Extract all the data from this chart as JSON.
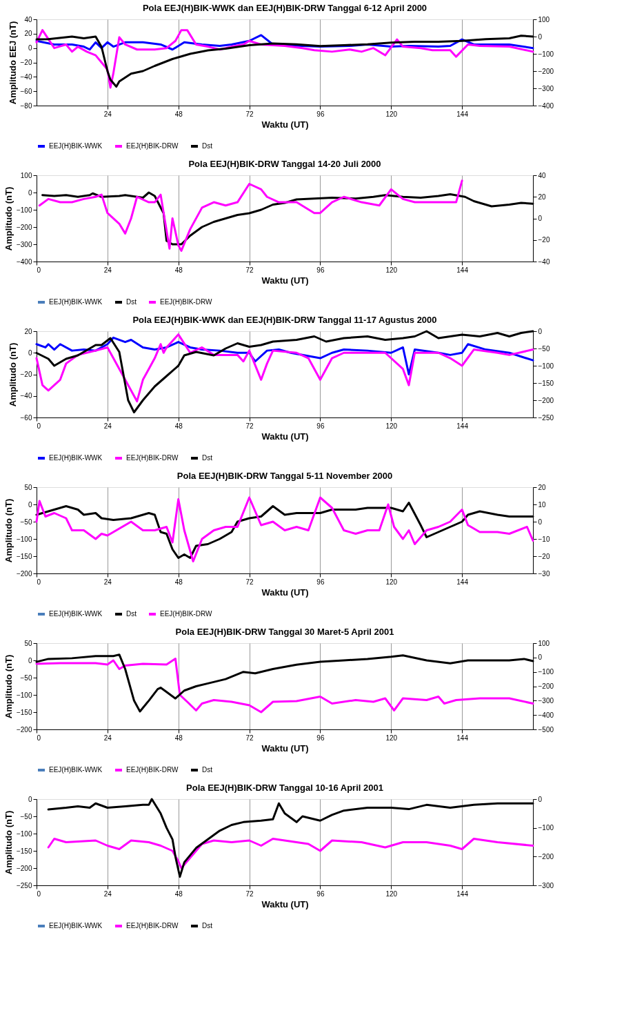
{
  "chart_data": [
    {
      "type": "line",
      "title": "Pola EEJ(H)BIK-WWK dan EEJ(H)BIK-DRW Tanggal 6-12 April 2000",
      "xlabel": "Waktu (UT)",
      "ylabel": "Amplitudo EEJ (nT)",
      "xlim": [
        0,
        168
      ],
      "xticks": [
        24,
        48,
        72,
        96,
        120,
        144
      ],
      "ylim": [
        -80,
        40
      ],
      "yticks": [
        -80,
        -60,
        -40,
        -20,
        0,
        20,
        40
      ],
      "y2lim": [
        -400,
        100
      ],
      "y2ticks": [
        -400,
        -300,
        -200,
        -100,
        0,
        100
      ],
      "grid": "x",
      "legend": "bottom",
      "series": [
        {
          "name": "EEJ(H)BIK-WWK",
          "color": "#0000ff",
          "x": [
            0,
            6,
            12,
            16,
            18,
            20,
            22,
            24,
            26,
            30,
            36,
            42,
            46,
            50,
            56,
            62,
            66,
            72,
            76,
            80,
            90,
            96,
            106,
            112,
            120,
            126,
            136,
            140,
            144,
            148,
            160,
            168
          ],
          "values": [
            10,
            5,
            5,
            2,
            -2,
            8,
            0,
            8,
            2,
            8,
            8,
            5,
            -2,
            8,
            5,
            3,
            5,
            10,
            18,
            5,
            3,
            2,
            3,
            5,
            2,
            3,
            2,
            3,
            12,
            5,
            5,
            0
          ]
        },
        {
          "name": "EEJ(H)BIK-DRW",
          "color": "#ff00ff",
          "x": [
            0,
            2,
            6,
            10,
            12,
            14,
            17,
            20,
            22,
            24,
            25,
            26,
            28,
            30,
            34,
            40,
            44,
            47,
            49,
            51,
            54,
            58,
            62,
            66,
            70,
            72,
            76,
            84,
            90,
            94,
            100,
            106,
            110,
            114,
            118,
            122,
            124,
            130,
            134,
            140,
            142,
            146,
            150,
            160,
            168
          ],
          "values": [
            8,
            25,
            0,
            5,
            -5,
            2,
            -5,
            -10,
            -20,
            -30,
            -55,
            -35,
            15,
            5,
            -2,
            -2,
            0,
            10,
            25,
            25,
            5,
            2,
            -2,
            2,
            5,
            10,
            5,
            3,
            0,
            -3,
            -5,
            -2,
            -5,
            0,
            -10,
            12,
            2,
            0,
            -3,
            -3,
            -12,
            5,
            3,
            2,
            -5
          ]
        },
        {
          "name": "Dst",
          "color": "#000000",
          "axis": "y2",
          "x": [
            0,
            4,
            12,
            16,
            20,
            22,
            24,
            25,
            27,
            28,
            32,
            36,
            40,
            46,
            52,
            58,
            64,
            72,
            80,
            88,
            96,
            104,
            112,
            120,
            128,
            136,
            144,
            152,
            160,
            164,
            168
          ],
          "values": [
            -16,
            -15,
            0,
            -10,
            0,
            -60,
            -200,
            -250,
            -290,
            -260,
            -215,
            -200,
            -170,
            -130,
            -100,
            -80,
            -70,
            -50,
            -40,
            -45,
            -55,
            -50,
            -45,
            -35,
            -30,
            -30,
            -25,
            -15,
            -10,
            5,
            0
          ]
        }
      ]
    },
    {
      "type": "line",
      "title": "Pola  EEJ(H)BIK-DRW Tanggal 14-20 Juli 2000",
      "xlabel": "Waktu (UT)",
      "ylabel": "Amplitudo (nT)",
      "xlim": [
        0,
        168
      ],
      "xticks": [
        0,
        24,
        48,
        72,
        96,
        120,
        144
      ],
      "ylim": [
        -400,
        100
      ],
      "yticks": [
        -400,
        -300,
        -200,
        -100,
        0,
        100
      ],
      "y2lim": [
        -40,
        40
      ],
      "y2ticks": [
        -40,
        -20,
        0,
        20,
        40
      ],
      "grid": "x",
      "legend": "bottom",
      "series": [
        {
          "name": "EEJ(H)BIK-WWK",
          "color": "#4a7ebb"
        },
        {
          "name": "Dst",
          "color": "#000000",
          "x": [
            2,
            6,
            10,
            14,
            18,
            19,
            22,
            28,
            30,
            36,
            38,
            40,
            43,
            44,
            46,
            49,
            52,
            56,
            60,
            64,
            68,
            72,
            76,
            80,
            84,
            88,
            94,
            100,
            108,
            114,
            118,
            124,
            130,
            136,
            140,
            145,
            148,
            154,
            160,
            164,
            168
          ],
          "values": [
            -15,
            -20,
            -15,
            -25,
            -15,
            -5,
            -25,
            -20,
            -15,
            -30,
            0,
            -20,
            -120,
            -280,
            -300,
            -300,
            -250,
            -200,
            -170,
            -150,
            -130,
            -120,
            -100,
            -70,
            -60,
            -40,
            -35,
            -30,
            -35,
            -25,
            -15,
            -25,
            -30,
            -20,
            -10,
            -25,
            -50,
            -80,
            -70,
            -60,
            -65
          ]
        },
        {
          "name": "EEJ(H)BIK-DRW",
          "color": "#ff00ff",
          "axis": "y2",
          "x": [
            1,
            4,
            8,
            12,
            16,
            20,
            22,
            24,
            28,
            30,
            32,
            34,
            38,
            40,
            42,
            45,
            46,
            48,
            49,
            52,
            56,
            60,
            64,
            68,
            72,
            76,
            78,
            82,
            88,
            94,
            96,
            100,
            104,
            110,
            116,
            120,
            124,
            128,
            136,
            142,
            144
          ],
          "values": [
            12,
            18,
            15,
            15,
            18,
            20,
            22,
            5,
            -5,
            -14,
            0,
            20,
            15,
            15,
            22,
            -28,
            0,
            -25,
            -30,
            -10,
            10,
            15,
            12,
            15,
            32,
            27,
            20,
            15,
            15,
            5,
            5,
            15,
            20,
            15,
            12,
            27,
            18,
            15,
            15,
            15,
            35
          ]
        }
      ]
    },
    {
      "type": "line",
      "title": "Pola EEJ(H)BIK-WWK dan EEJ(H)BIK-DRW Tanggal 11-17 Agustus 2000",
      "xlabel": "Waktu (UT)",
      "ylabel": "Amplitudo (nT)",
      "xlim": [
        0,
        168
      ],
      "xticks": [
        0,
        24,
        48,
        72,
        96,
        120,
        144
      ],
      "ylim": [
        -60,
        20
      ],
      "yticks": [
        -60,
        -40,
        -20,
        0,
        20
      ],
      "y2lim": [
        -250,
        0
      ],
      "y2ticks": [
        -250,
        -200,
        -150,
        -100,
        -50,
        0
      ],
      "grid": "x",
      "legend": "bottom",
      "series": [
        {
          "name": "EEJ(H)BIK-WWK",
          "color": "#0000ff",
          "x": [
            0,
            3,
            4,
            6,
            8,
            12,
            16,
            20,
            24,
            26,
            30,
            32,
            36,
            40,
            44,
            48,
            52,
            56,
            62,
            68,
            72,
            74,
            78,
            82,
            86,
            96,
            100,
            104,
            112,
            120,
            124,
            126,
            128,
            136,
            140,
            144,
            146,
            152,
            160,
            168
          ],
          "values": [
            8,
            5,
            8,
            3,
            8,
            2,
            3,
            2,
            8,
            14,
            10,
            12,
            5,
            3,
            5,
            10,
            5,
            3,
            2,
            0,
            0,
            -8,
            2,
            3,
            0,
            -5,
            0,
            3,
            2,
            0,
            5,
            -20,
            3,
            0,
            -2,
            0,
            8,
            3,
            0,
            -7
          ]
        },
        {
          "name": "EEJ(H)BIK-DRW",
          "color": "#ff00ff",
          "x": [
            0,
            2,
            4,
            8,
            10,
            14,
            20,
            24,
            26,
            30,
            34,
            36,
            38,
            40,
            42,
            43,
            44,
            48,
            52,
            56,
            60,
            68,
            70,
            72,
            76,
            78,
            80,
            88,
            92,
            96,
            100,
            104,
            112,
            118,
            124,
            126,
            128,
            136,
            140,
            144,
            148,
            156,
            160,
            168
          ],
          "values": [
            -5,
            -30,
            -35,
            -25,
            -10,
            -2,
            2,
            5,
            -5,
            -25,
            -45,
            -25,
            -15,
            -5,
            8,
            0,
            5,
            17,
            0,
            5,
            -2,
            -2,
            -8,
            2,
            -25,
            -10,
            2,
            0,
            -5,
            -25,
            -5,
            0,
            0,
            0,
            -15,
            -30,
            0,
            0,
            -5,
            -12,
            3,
            0,
            -2,
            3
          ]
        },
        {
          "name": "Dst",
          "color": "#000000",
          "axis": "y2",
          "x": [
            0,
            4,
            6,
            10,
            14,
            18,
            20,
            22,
            25,
            28,
            31,
            33,
            36,
            40,
            44,
            48,
            50,
            54,
            60,
            64,
            68,
            72,
            76,
            80,
            88,
            94,
            98,
            104,
            112,
            118,
            124,
            128,
            132,
            136,
            144,
            150,
            156,
            160,
            164,
            168
          ],
          "values": [
            -63,
            -80,
            -100,
            -80,
            -70,
            -50,
            -40,
            -40,
            -20,
            -60,
            -200,
            -235,
            -200,
            -160,
            -130,
            -100,
            -70,
            -60,
            -70,
            -50,
            -35,
            -45,
            -40,
            -30,
            -25,
            -15,
            -30,
            -20,
            -15,
            -25,
            -20,
            -15,
            0,
            -20,
            -10,
            -15,
            -5,
            -15,
            -5,
            0
          ]
        }
      ]
    },
    {
      "type": "line",
      "title": "Pola EEJ(H)BIK-DRW Tanggal 5-11 November 2000",
      "xlabel": "Waktu (UT)",
      "ylabel": "Amplitudo (nT)",
      "xlim": [
        0,
        168
      ],
      "xticks": [
        0,
        24,
        48,
        72,
        96,
        120,
        144
      ],
      "ylim": [
        -200,
        50
      ],
      "yticks": [
        -200,
        -150,
        -100,
        -50,
        0,
        50
      ],
      "y2lim": [
        -30,
        20
      ],
      "y2ticks": [
        -30,
        -20,
        -10,
        0,
        10,
        20
      ],
      "grid": "x",
      "legend": "bottom",
      "series": [
        {
          "name": "EEJ(H)BIK-WWK",
          "color": "#4a7ebb"
        },
        {
          "name": "Dst",
          "color": "#000000",
          "x": [
            0,
            4,
            10,
            14,
            16,
            20,
            22,
            26,
            32,
            36,
            38,
            40,
            42,
            44,
            46,
            48,
            50,
            52,
            54,
            58,
            62,
            66,
            68,
            72,
            76,
            80,
            84,
            88,
            96,
            100,
            108,
            112,
            120,
            124,
            126,
            130,
            132,
            136,
            140,
            144,
            146,
            150,
            156,
            160,
            168
          ],
          "values": [
            -30,
            -20,
            -5,
            -15,
            -30,
            -25,
            -40,
            -45,
            -40,
            -30,
            -25,
            -30,
            -80,
            -85,
            -130,
            -155,
            -145,
            -155,
            -120,
            -115,
            -100,
            -80,
            -50,
            -40,
            -35,
            -5,
            -30,
            -25,
            -25,
            -15,
            -15,
            -10,
            -10,
            -20,
            5,
            -60,
            -95,
            -80,
            -65,
            -50,
            -30,
            -20,
            -30,
            -35,
            -35
          ]
        },
        {
          "name": "EEJ(H)BIK-DRW",
          "color": "#ff00ff",
          "axis": "y2",
          "x": [
            0,
            1,
            3,
            6,
            10,
            12,
            16,
            20,
            22,
            24,
            32,
            36,
            40,
            44,
            46,
            48,
            50,
            53,
            56,
            60,
            64,
            68,
            72,
            76,
            80,
            84,
            88,
            92,
            96,
            100,
            104,
            108,
            112,
            116,
            119,
            121,
            124,
            126,
            128,
            132,
            136,
            140,
            144,
            146,
            150,
            156,
            160,
            166,
            168
          ],
          "values": [
            0,
            12,
            3,
            5,
            2,
            -5,
            -5,
            -10,
            -7,
            -8,
            0,
            -5,
            -5,
            -3,
            -12,
            13,
            -5,
            -23,
            -10,
            -5,
            -3,
            -3,
            14,
            -2,
            0,
            -5,
            -3,
            -5,
            14,
            8,
            -5,
            -7,
            -5,
            -5,
            10,
            -3,
            -10,
            -5,
            -13,
            -5,
            -3,
            0,
            7,
            -2,
            -6,
            -6,
            -7,
            -3,
            -11
          ]
        }
      ]
    },
    {
      "type": "line",
      "title": "Pola EEJ(H)BIK-DRW Tanggal 30 Maret-5 April 2001",
      "xlabel": "Waktu (UT)",
      "ylabel": "Amplitudo (nT)",
      "xlim": [
        0,
        168
      ],
      "xticks": [
        0,
        24,
        48,
        72,
        96,
        120,
        144
      ],
      "ylim": [
        -200,
        50
      ],
      "yticks": [
        -200,
        -150,
        -100,
        -50,
        0,
        50
      ],
      "y2lim": [
        -500,
        100
      ],
      "y2ticks": [
        -500,
        -400,
        -300,
        -200,
        -100,
        0,
        100
      ],
      "grid": "x",
      "legend": "bottom",
      "series": [
        {
          "name": "EEJ(H)BIK-WWK",
          "color": "#4a7ebb"
        },
        {
          "name": "EEJ(H)BIK-DRW",
          "color": "#ff00ff",
          "x": [
            0,
            8,
            20,
            24,
            26,
            28,
            30,
            36,
            44,
            47,
            48.5,
            51,
            54,
            56,
            60,
            66,
            72,
            76,
            80,
            88,
            96,
            100,
            108,
            114,
            118,
            121,
            124,
            132,
            136,
            138,
            142,
            150,
            160,
            168
          ],
          "values": [
            -10,
            -8,
            -8,
            -12,
            0,
            -25,
            -15,
            -10,
            -12,
            5,
            -100,
            -120,
            -145,
            -125,
            -115,
            -120,
            -130,
            -150,
            -120,
            -118,
            -105,
            -125,
            -115,
            -120,
            -110,
            -145,
            -110,
            -115,
            -105,
            -125,
            -115,
            -110,
            -110,
            -125
          ]
        },
        {
          "name": "Dst",
          "color": "#000000",
          "axis": "y2",
          "x": [
            0,
            4,
            12,
            20,
            26,
            28,
            30,
            33,
            35,
            38,
            41,
            42,
            44,
            47,
            50,
            54,
            58,
            64,
            70,
            74,
            80,
            88,
            96,
            104,
            112,
            120,
            124,
            132,
            140,
            146,
            160,
            165,
            168
          ],
          "values": [
            -30,
            -10,
            -5,
            10,
            10,
            20,
            -80,
            -300,
            -375,
            -300,
            -220,
            -210,
            -240,
            -285,
            -230,
            -200,
            -180,
            -150,
            -100,
            -110,
            -80,
            -50,
            -30,
            -20,
            -10,
            5,
            15,
            -20,
            -40,
            -20,
            -20,
            -10,
            -25
          ]
        }
      ]
    },
    {
      "type": "line",
      "title": "Pola EEJ(H)BIK-DRW Tanggal 10-16 April 2001",
      "xlabel": "Waktu (UT)",
      "ylabel": "Amplitudo (nT)",
      "xlim": [
        0,
        168
      ],
      "xticks": [
        0,
        24,
        48,
        72,
        96,
        120,
        144
      ],
      "ylim": [
        -250,
        0
      ],
      "yticks": [
        -250,
        -200,
        -150,
        -100,
        -50,
        0
      ],
      "y2lim": [
        -300,
        0
      ],
      "y2ticks": [
        -300,
        -200,
        -100,
        0
      ],
      "grid": "x",
      "legend": "bottom",
      "series": [
        {
          "name": "EEJ(H)BIK-WWK",
          "color": "#4a7ebb"
        },
        {
          "name": "EEJ(H)BIK-DRW",
          "color": "#ff00ff",
          "x": [
            4,
            6,
            10,
            20,
            24,
            28,
            32,
            38,
            42,
            46,
            48,
            49,
            52,
            56,
            60,
            66,
            72,
            76,
            80,
            88,
            92,
            96,
            100,
            110,
            118,
            124,
            132,
            140,
            144,
            148,
            156,
            168
          ],
          "values": [
            -140,
            -115,
            -125,
            -120,
            -135,
            -145,
            -120,
            -125,
            -135,
            -150,
            -180,
            -200,
            -170,
            -130,
            -120,
            -125,
            -120,
            -135,
            -115,
            -125,
            -130,
            -150,
            -120,
            -125,
            -140,
            -125,
            -125,
            -135,
            -145,
            -115,
            -125,
            -135
          ]
        },
        {
          "name": "Dst",
          "color": "#000000",
          "axis": "y2",
          "x": [
            4,
            10,
            14,
            18,
            20,
            24,
            30,
            36,
            38,
            39,
            42,
            44,
            46,
            47,
            48.5,
            50,
            54,
            58,
            62,
            66,
            70,
            76,
            80,
            82,
            84,
            88,
            90,
            96,
            100,
            104,
            112,
            120,
            126,
            132,
            140,
            148,
            156,
            168
          ],
          "values": [
            -36,
            -30,
            -25,
            -30,
            -15,
            -30,
            -25,
            -20,
            -20,
            0,
            -50,
            -100,
            -140,
            -200,
            -270,
            -220,
            -170,
            -140,
            -110,
            -90,
            -80,
            -75,
            -70,
            -15,
            -50,
            -80,
            -60,
            -75,
            -55,
            -40,
            -30,
            -30,
            -35,
            -20,
            -30,
            -20,
            -15,
            -15
          ]
        }
      ]
    }
  ]
}
